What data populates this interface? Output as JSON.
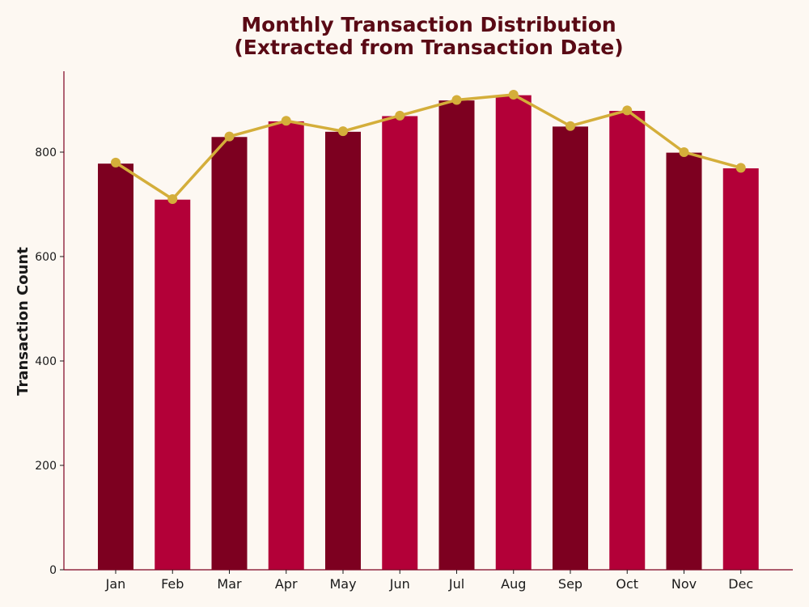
{
  "chart_data": {
    "type": "bar",
    "title_line1": "Monthly Transaction Distribution",
    "title_line2": "(Extracted from Transaction Date)",
    "xlabel": "",
    "ylabel": "Transaction Count",
    "categories": [
      "Jan",
      "Feb",
      "Mar",
      "Apr",
      "May",
      "Jun",
      "Jul",
      "Aug",
      "Sep",
      "Oct",
      "Nov",
      "Dec"
    ],
    "values": [
      778,
      709,
      829,
      859,
      839,
      869,
      899,
      909,
      849,
      879,
      799,
      769
    ],
    "line_values": [
      780,
      710,
      830,
      860,
      840,
      870,
      900,
      910,
      850,
      880,
      800,
      770
    ],
    "ylim": [
      0,
      955
    ],
    "yticks": [
      0,
      200,
      400,
      600,
      800
    ],
    "grid": false,
    "legend": "none",
    "colors": {
      "bar_dark": "#7d0020",
      "bar_light": "#b30038",
      "line": "#d4ae3a",
      "axis": "#7d0020",
      "title": "#5a0a15",
      "background": "#fdf8f2"
    }
  }
}
